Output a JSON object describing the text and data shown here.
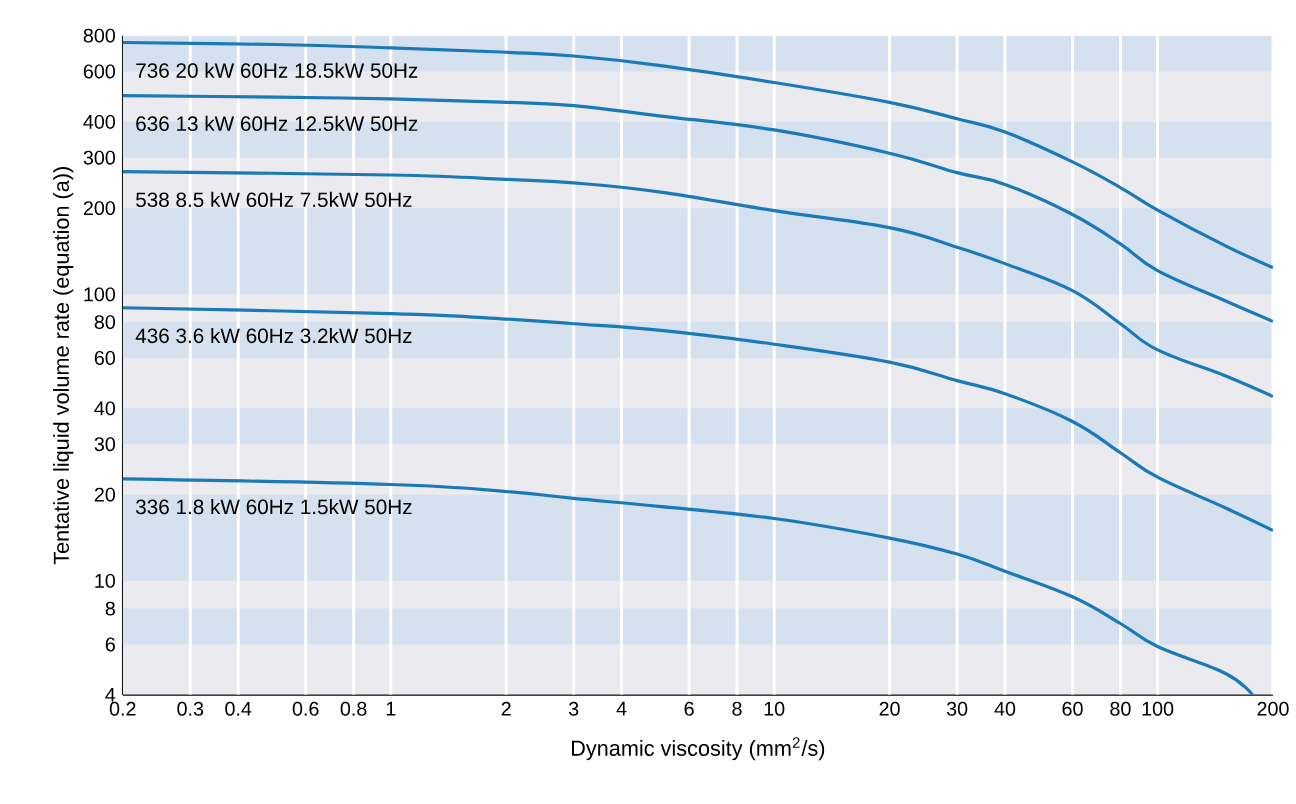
{
  "chart_data": {
    "type": "line",
    "xlabel": "Dynamic viscosity (mm$^{2}$/s)",
    "ylabel": "Tentative liquid volume rate (equation (a))",
    "log": "xy",
    "grid": "x",
    "legend": false,
    "marker": "none",
    "line_style": "solid",
    "xlim": [
      0.2,
      200
    ],
    "ylim": [
      4,
      800
    ],
    "xticks": [
      0.2,
      0.3,
      0.4,
      0.6,
      0.8,
      1,
      2,
      3,
      4,
      6,
      8,
      10,
      20,
      30,
      40,
      60,
      80,
      100,
      200
    ],
    "yticks": [
      4,
      6,
      8,
      10,
      20,
      30,
      40,
      60,
      80,
      100,
      200,
      300,
      400,
      600,
      800
    ],
    "bands": [
      {
        "axis": "y",
        "from": 600,
        "to": 800,
        "color": "#d5e1ef"
      },
      {
        "axis": "y",
        "from": 300,
        "to": 400,
        "color": "#d5e1ef"
      },
      {
        "axis": "y",
        "from": 100,
        "to": 200,
        "color": "#d5e1ef"
      },
      {
        "axis": "y",
        "from": 60,
        "to": 80,
        "color": "#d5e1ef"
      },
      {
        "axis": "y",
        "from": 30,
        "to": 40,
        "color": "#d5e1ef"
      },
      {
        "axis": "y",
        "from": 10,
        "to": 20,
        "color": "#d5e1ef"
      },
      {
        "axis": "y",
        "from": 6,
        "to": 8,
        "color": "#d5e1ef"
      }
    ],
    "series": [
      {
        "name": "736  20 kW  60Hz  18.5kW  50Hz",
        "color": "#1a7ab8",
        "x": [
          0.2,
          0.5,
          1,
          2,
          3,
          5,
          10,
          20,
          30,
          40,
          60,
          80,
          100,
          150,
          200
        ],
        "values": [
          757,
          745,
          725,
          700,
          679,
          630,
          549,
          468,
          410,
          369,
          290,
          236,
          197,
          148,
          124
        ]
      },
      {
        "name": "636  13 kW  60Hz  12.5kW  50Hz",
        "color": "#1a7ab8",
        "x": [
          0.2,
          0.5,
          1,
          2,
          3,
          5,
          10,
          20,
          30,
          40,
          60,
          80,
          100,
          150,
          200
        ],
        "values": [
          494,
          488,
          481,
          468,
          456,
          420,
          375,
          311,
          266,
          242,
          190,
          150,
          121,
          95,
          80.5
        ]
      },
      {
        "name": "538  8.5 kW  60Hz  7.5kW  50Hz",
        "color": "#1a7ab8",
        "x": [
          0.2,
          1,
          2,
          3,
          5,
          10,
          20,
          30,
          40,
          60,
          80,
          100,
          150,
          200
        ],
        "values": [
          268,
          261,
          252,
          245,
          228,
          196,
          171,
          146,
          128,
          103,
          79,
          64,
          52,
          44
        ]
      },
      {
        "name": "436  3.6 kW  60Hz  3.2kW  50Hz",
        "color": "#1a7ab8",
        "x": [
          0.2,
          1,
          2,
          3,
          5,
          10,
          20,
          30,
          40,
          60,
          80,
          100,
          150,
          200
        ],
        "values": [
          89.8,
          85.7,
          82,
          79,
          75,
          67,
          58,
          50,
          45,
          36,
          28,
          23,
          18,
          15
        ]
      },
      {
        "name": "336  1.8 kW  60Hz  1.5kW  50Hz",
        "color": "#1a7ab8",
        "x": [
          0.2,
          1,
          2,
          3,
          5,
          10,
          20,
          30,
          40,
          60,
          80,
          100,
          150,
          177
        ],
        "values": [
          22.7,
          21.7,
          20.5,
          19.4,
          18.2,
          16.5,
          14.1,
          12.4,
          10.8,
          8.8,
          7.1,
          5.9,
          4.76,
          4
        ]
      }
    ]
  }
}
